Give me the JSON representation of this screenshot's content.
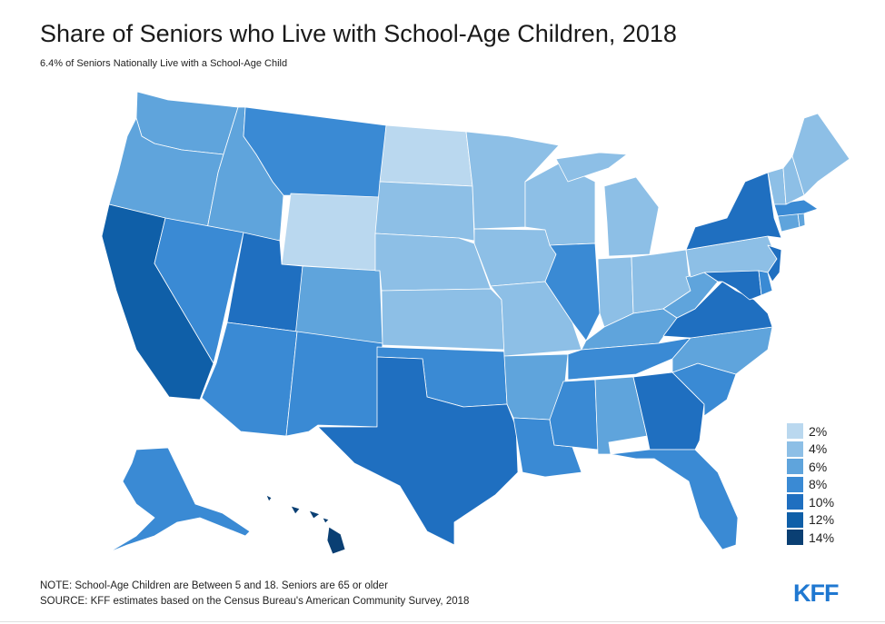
{
  "title": "Share of Seniors who Live with School-Age Children, 2018",
  "subtitle": "6.4% of Seniors Nationally Live with a School-Age Child",
  "colors": {
    "c2": "#bad8ef",
    "c4": "#8dbfe6",
    "c6": "#5fa4dc",
    "c8": "#3a8ad4",
    "c10": "#1f6fc0",
    "c12": "#0f5fa8",
    "c14": "#0a3f73",
    "border": "#ffffff"
  },
  "legend": [
    {
      "label": "2%",
      "color": "#bad8ef"
    },
    {
      "label": "4%",
      "color": "#8dbfe6"
    },
    {
      "label": "6%",
      "color": "#5fa4dc"
    },
    {
      "label": "8%",
      "color": "#3a8ad4"
    },
    {
      "label": "10%",
      "color": "#1f6fc0"
    },
    {
      "label": "12%",
      "color": "#0f5fa8"
    },
    {
      "label": "14%",
      "color": "#0a3f73"
    }
  ],
  "footer": {
    "note": "NOTE: School-Age Children are Between 5 and 18. Seniors are 65 or older",
    "source": "SOURCE: KFF estimates based on the Census Bureau's American Community Survey, 2018"
  },
  "logo": "KFF"
}
